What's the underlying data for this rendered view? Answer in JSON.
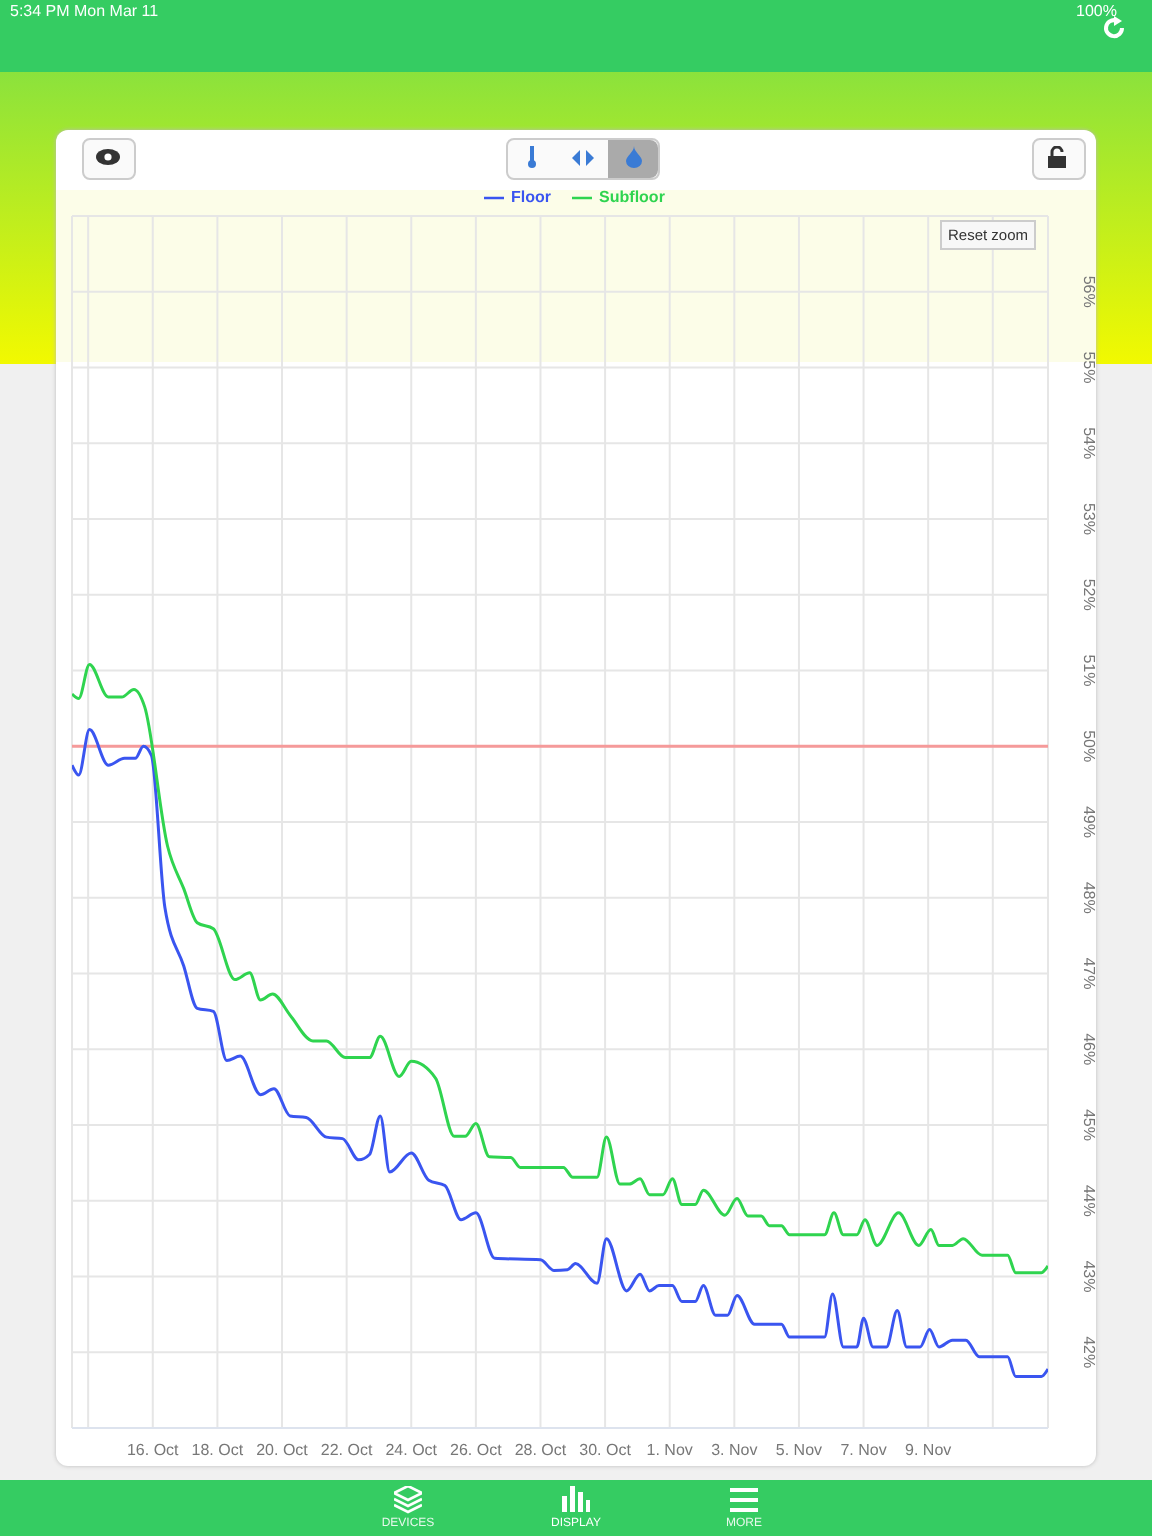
{
  "chart_data": {
    "type": "line",
    "legend": "top",
    "grid": true,
    "marker": "none",
    "line_style": "solid",
    "xlim": [
      "--10-13T12:00",
      "--11-12T17:00"
    ],
    "xticks": [
      {
        "value": "--10-14",
        "label": null
      },
      {
        "value": "--10-16",
        "label": "16. Oct"
      },
      {
        "value": "--10-18",
        "label": "18. Oct"
      },
      {
        "value": "--10-20",
        "label": "20. Oct"
      },
      {
        "value": "--10-22",
        "label": "22. Oct"
      },
      {
        "value": "--10-24",
        "label": "24. Oct"
      },
      {
        "value": "--10-26",
        "label": "26. Oct"
      },
      {
        "value": "--10-28",
        "label": "28. Oct"
      },
      {
        "value": "--10-30",
        "label": "30. Oct"
      },
      {
        "value": "--11-01",
        "label": "1. Nov"
      },
      {
        "value": "--11-03",
        "label": "3. Nov"
      },
      {
        "value": "--11-05",
        "label": "5. Nov"
      },
      {
        "value": "--11-07",
        "label": "7. Nov"
      },
      {
        "value": "--11-09",
        "label": "9. Nov"
      },
      {
        "value": "--11-11",
        "label": null
      }
    ],
    "ylim": [
      41,
      57
    ],
    "yticks": [
      {
        "value": 42,
        "label": "42%"
      },
      {
        "value": 43,
        "label": "43%"
      },
      {
        "value": 44,
        "label": "44%"
      },
      {
        "value": 45,
        "label": "45%"
      },
      {
        "value": 46,
        "label": "46%"
      },
      {
        "value": 47,
        "label": "47%"
      },
      {
        "value": 48,
        "label": "48%"
      },
      {
        "value": 49,
        "label": "49%"
      },
      {
        "value": 50,
        "label": "50%"
      },
      {
        "value": 51,
        "label": "51%"
      },
      {
        "value": 52,
        "label": "52%"
      },
      {
        "value": 53,
        "label": "53%"
      },
      {
        "value": 54,
        "label": "54%"
      },
      {
        "value": 55,
        "label": "55%"
      },
      {
        "value": 56,
        "label": "56%"
      }
    ],
    "ref_lines": [
      {
        "axis": "y",
        "value": 50,
        "color": "#f59a9a"
      }
    ],
    "annotations": [
      "5:34 PM",
      "Mon Mar 11",
      "100%",
      "Reset zoom",
      "DEVICES",
      "DISPLAY",
      "MORE"
    ],
    "series": [
      {
        "name": "Floor",
        "color": "#3a55f0",
        "x": [
          "--10-13T12:00",
          "--10-13T17:00",
          "--10-14T01:00",
          "--10-14T15:00",
          "--10-15T03:00",
          "--10-15T11:00",
          "--10-15T17:00",
          "--10-15T23:00",
          "--10-16T09:00",
          "--10-16T23:00",
          "--10-17T09:00",
          "--10-17T21:00",
          "--10-18T07:00",
          "--10-18T17:00",
          "--10-19T08:00",
          "--10-19T18:00",
          "--10-20T06:00",
          "--10-20T18:00",
          "--10-21T09:00",
          "--10-21T21:00",
          "--10-22T09:00",
          "--10-22T17:00",
          "--10-23T01:00",
          "--10-23T08:00",
          "--10-24T00:00",
          "--10-24T13:00",
          "--10-25T01:00",
          "--10-25T13:00",
          "--10-26T00:00",
          "--10-26T14:00",
          "--10-28T00:00",
          "--10-28T10:00",
          "--10-28T20:00",
          "--10-29T02:00",
          "--10-29T18:00",
          "--10-30T01:00",
          "--10-30T16:00",
          "--10-31T02:00",
          "--10-31T09:00",
          "--10-31T16:00",
          "--11-01T02:00",
          "--11-01T09:00",
          "--11-01T19:00",
          "--11-02T01:00",
          "--11-02T10:00",
          "--11-02T19:00",
          "--11-03T02:00",
          "--11-03T15:00",
          "--11-04T11:00",
          "--11-04T17:00",
          "--11-05T19:00",
          "--11-06T01:00",
          "--11-06T09:00",
          "--11-06T19:00",
          "--11-07T00:00",
          "--11-07T07:00",
          "--11-07T17:00",
          "--11-08T01:00",
          "--11-08T08:00",
          "--11-08T18:00",
          "--11-09T01:00",
          "--11-09T08:00",
          "--11-09T18:00",
          "--11-10T04:00",
          "--11-10T14:00",
          "--11-11T11:00",
          "--11-11T17:00",
          "--11-12T12:00",
          "--11-12T17:00"
        ],
        "values": [
          49.75,
          49.62,
          50.22,
          49.75,
          49.84,
          49.84,
          50.0,
          49.88,
          47.87,
          47.1,
          46.54,
          46.5,
          45.85,
          45.91,
          45.4,
          45.48,
          45.12,
          45.1,
          44.84,
          44.82,
          44.54,
          44.61,
          45.12,
          44.38,
          44.63,
          44.27,
          44.2,
          43.75,
          43.84,
          43.24,
          43.22,
          43.08,
          43.09,
          43.17,
          42.91,
          43.5,
          42.81,
          43.03,
          42.81,
          42.88,
          42.88,
          42.67,
          42.67,
          42.88,
          42.49,
          42.49,
          42.75,
          42.37,
          42.37,
          42.2,
          42.2,
          42.77,
          42.07,
          42.07,
          42.45,
          42.07,
          42.07,
          42.55,
          42.07,
          42.07,
          42.3,
          42.07,
          42.16,
          42.16,
          41.94,
          41.94,
          41.68,
          41.68,
          41.78
        ]
      },
      {
        "name": "Subfloor",
        "color": "#2fd44f",
        "x": [
          "--10-13T12:00",
          "--10-13T17:00",
          "--10-14T01:00",
          "--10-14T15:00",
          "--10-15T01:00",
          "--10-15T10:00",
          "--10-15T18:00",
          "--10-16T11:00",
          "--10-16T23:00",
          "--10-17T09:00",
          "--10-17T21:00",
          "--10-18T13:00",
          "--10-19T00:00",
          "--10-19T08:00",
          "--10-19T17:00",
          "--10-20T06:00",
          "--10-20T23:00",
          "--10-21T09:00",
          "--10-21T23:00",
          "--10-22T17:00",
          "--10-23T01:00",
          "--10-23T15:00",
          "--10-24T00:00",
          "--10-24T18:00",
          "--10-25T08:00",
          "--10-25T16:00",
          "--10-26T00:00",
          "--10-26T10:00",
          "--10-27T02:00",
          "--10-27T09:00",
          "--10-28T17:00",
          "--10-29T00:00",
          "--10-29T18:00",
          "--10-30T01:00",
          "--10-30T11:00",
          "--10-30T18:00",
          "--10-31T02:00",
          "--10-31T09:00",
          "--10-31T19:00",
          "--11-01T02:00",
          "--11-01T09:00",
          "--11-01T19:00",
          "--11-02T01:00",
          "--11-02T17:00",
          "--11-03T02:00",
          "--11-03T10:00",
          "--11-03T20:00",
          "--11-04T02:00",
          "--11-04T11:00",
          "--11-04T17:00",
          "--11-05T19:00",
          "--11-06T02:00",
          "--11-06T09:00",
          "--11-06T19:00",
          "--11-07T01:00",
          "--11-07T10:00",
          "--11-08T02:00",
          "--11-08T17:00",
          "--11-09T02:00",
          "--11-09T08:00",
          "--11-09T18:00",
          "--11-10T02:00",
          "--11-10T16:00",
          "--11-11T11:00",
          "--11-11T17:00",
          "--11-12T12:00",
          "--11-12T17:00"
        ],
        "values": [
          50.69,
          50.63,
          51.08,
          50.65,
          50.65,
          50.75,
          50.52,
          48.68,
          48.12,
          47.67,
          47.59,
          46.92,
          47.01,
          46.65,
          46.73,
          46.45,
          46.11,
          46.11,
          45.89,
          45.89,
          46.17,
          45.64,
          45.84,
          45.62,
          44.85,
          44.85,
          45.02,
          44.58,
          44.57,
          44.44,
          44.44,
          44.31,
          44.31,
          44.84,
          44.22,
          44.22,
          44.29,
          44.08,
          44.08,
          44.29,
          43.95,
          43.95,
          44.14,
          43.81,
          44.03,
          43.8,
          43.8,
          43.67,
          43.67,
          43.55,
          43.55,
          43.84,
          43.55,
          43.55,
          43.75,
          43.41,
          43.84,
          43.41,
          43.62,
          43.41,
          43.41,
          43.5,
          43.28,
          43.28,
          43.05,
          43.05,
          43.14
        ]
      }
    ]
  }
}
